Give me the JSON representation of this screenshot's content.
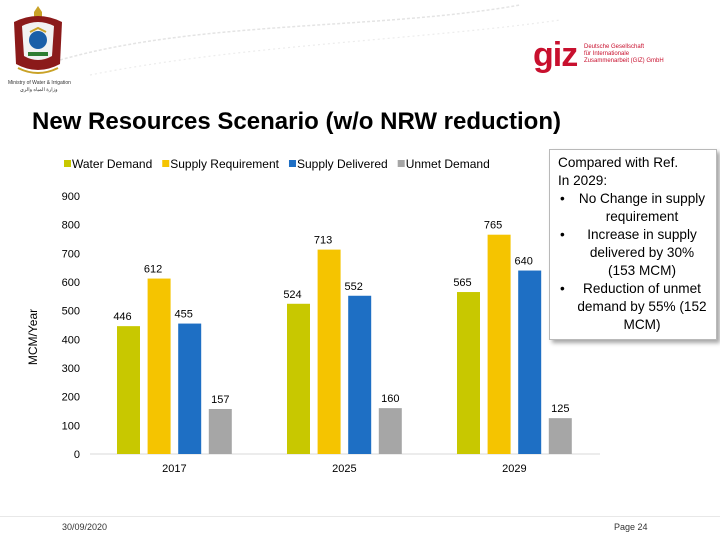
{
  "header": {
    "ministry_en": "Ministry of Water & Irrigation",
    "ministry_ar": "وزارة المياه والري",
    "giz_logo": "giz",
    "giz_lines": [
      "Deutsche Gesellschaft",
      "für Internationale",
      "Zusammenarbeit (GIZ) GmbH"
    ],
    "brand_color": "#c8102e"
  },
  "title": "New Resources Scenario (w/o NRW reduction)",
  "chart_data": {
    "type": "bar",
    "categories": [
      "2017",
      "2025",
      "2029"
    ],
    "series": [
      {
        "name": "Water Demand",
        "color": "#c8c800",
        "values": [
          446,
          524,
          565
        ]
      },
      {
        "name": "Supply Requirement",
        "color": "#f5c400",
        "values": [
          612,
          713,
          765
        ]
      },
      {
        "name": "Supply Delivered",
        "color": "#1e6fc4",
        "values": [
          455,
          552,
          640
        ]
      },
      {
        "name": "Unmet Demand",
        "color": "#a6a6a6",
        "values": [
          157,
          160,
          125
        ]
      }
    ],
    "ylabel": "MCM/Year",
    "ylim": [
      0,
      900
    ],
    "yticks": [
      0,
      100,
      200,
      300,
      400,
      500,
      600,
      700,
      800,
      900
    ],
    "legend_position": "top",
    "grid": false
  },
  "callout": {
    "line1": "Compared with Ref.",
    "line2": "In 2029:",
    "bullets": [
      "No Change in supply requirement",
      "Increase in supply delivered by 30% (153 MCM)",
      "Reduction of unmet demand by 55% (152 MCM)"
    ]
  },
  "footer": {
    "date": "30/09/2020",
    "page": "Page 24"
  }
}
